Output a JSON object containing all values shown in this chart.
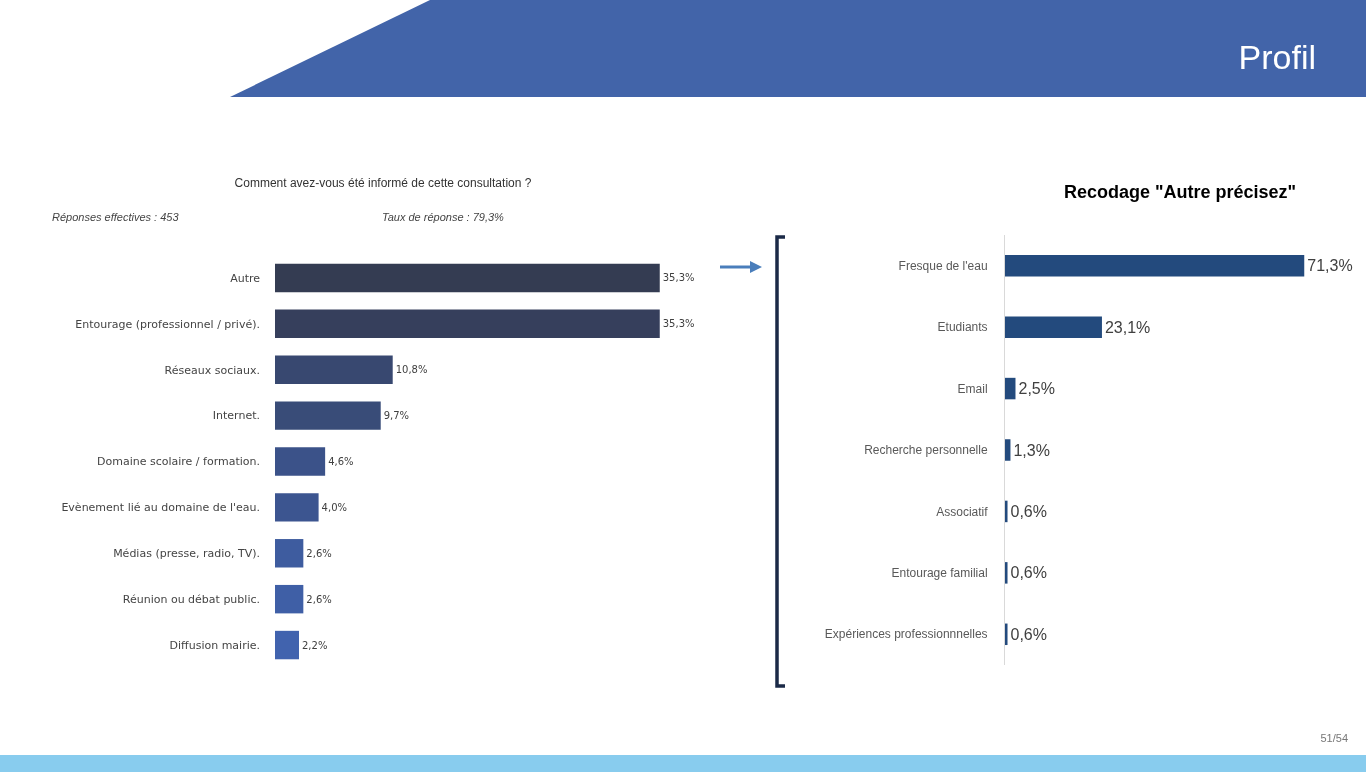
{
  "chart_data": [
    {
      "type": "bar",
      "orientation": "horizontal",
      "title": "Comment avez-vous été informé de cette consultation ?",
      "categories": [
        "Autre",
        "Entourage (professionnel / privé).",
        "Réseaux sociaux.",
        "Internet.",
        "Domaine scolaire / formation.",
        "Evènement lié au domaine de l'eau.",
        "Médias (presse, radio, TV).",
        "Réunion ou débat public.",
        "Diffusion mairie."
      ],
      "values": [
        35.3,
        35.3,
        10.8,
        9.7,
        4.6,
        4.0,
        2.6,
        2.6,
        2.2
      ],
      "value_labels": [
        "35,3%",
        "35,3%",
        "10,8%",
        "9,7%",
        "4,6%",
        "4,0%",
        "2,6%",
        "2,6%",
        "2,2%"
      ],
      "colors": [
        "#343c52",
        "#363f5c",
        "#384870",
        "#394c78",
        "#3b5289",
        "#3c5590",
        "#3e5c9f",
        "#3f5fa6",
        "#4163ae"
      ],
      "annotations": [
        "Réponses effectives : 453",
        "Taux de réponse : 79,3%",
        "Profil",
        "51/54"
      ],
      "grid": false
    },
    {
      "type": "bar",
      "orientation": "horizontal",
      "title": "Recodage \"Autre précisez\"",
      "categories": [
        "Fresque de l'eau",
        "Etudiants",
        "Email",
        "Recherche personnelle",
        "Associatif",
        "Entourage familial",
        "Expériences professionnnelles"
      ],
      "values": [
        71.3,
        23.1,
        2.5,
        1.3,
        0.6,
        0.6,
        0.6
      ],
      "value_labels": [
        "71,3%",
        "23,1%",
        "2,5%",
        "1,3%",
        "0,6%",
        "0,6%",
        "0,6%"
      ],
      "color": "#234a7d",
      "grid": false
    }
  ]
}
